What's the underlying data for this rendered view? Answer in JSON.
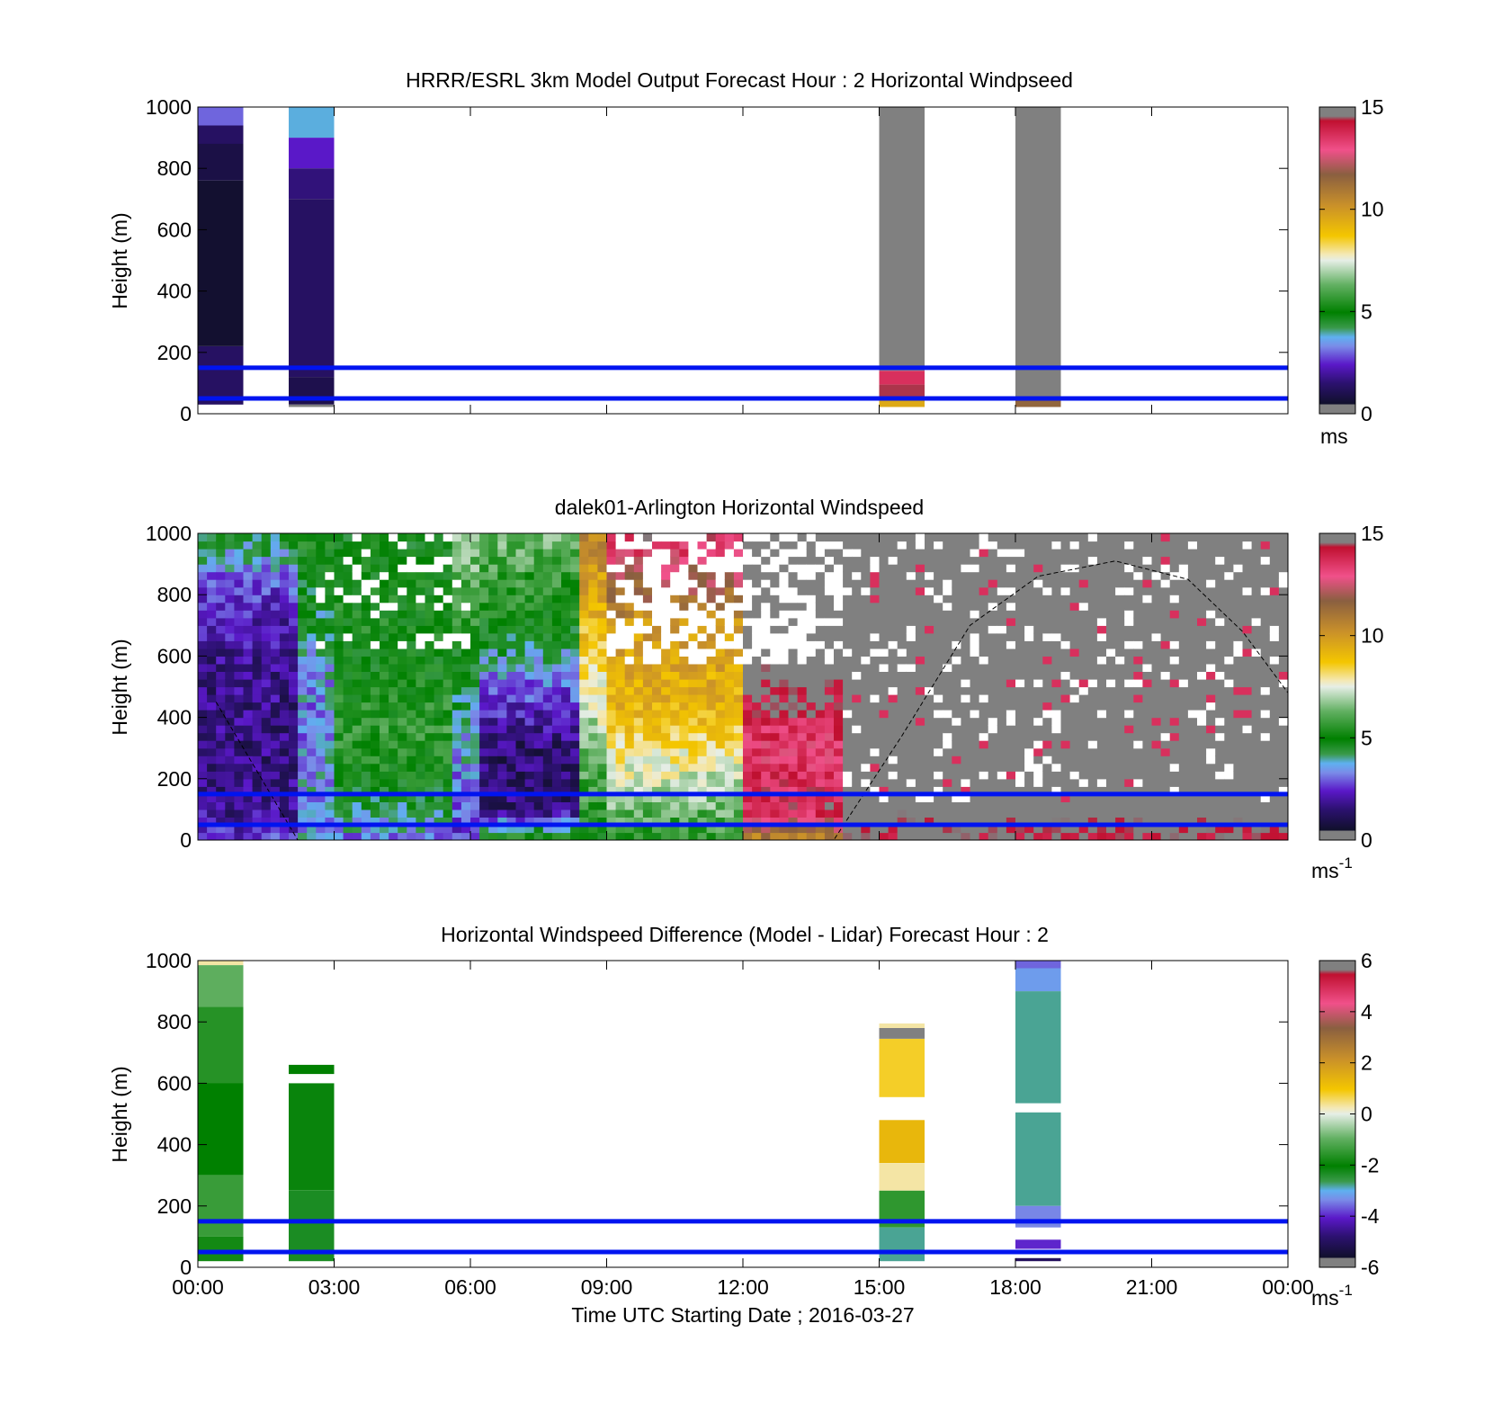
{
  "chart_data": [
    {
      "type": "heatmap",
      "title": "HRRR/ESRL 3km Model Output   Forecast Hour : 2 Horizontal Windpseed",
      "ylabel": "Height (m)",
      "ylim": [
        0,
        1000
      ],
      "yticks": [
        "0",
        "200",
        "400",
        "600",
        "800",
        "1000"
      ],
      "xlim_hours": [
        0,
        24
      ],
      "colorbar": {
        "min": 0,
        "max": 15,
        "ticks": [
          "0",
          "5",
          "10",
          "15"
        ],
        "unit": "ms",
        "unit_sup": ""
      },
      "reference_lines_m": [
        50,
        150
      ],
      "columns": [
        {
          "t0": 0.0,
          "t1": 1.0,
          "cells": [
            {
              "h0": 940,
              "h1": 1000,
              "v": 3.0
            },
            {
              "h0": 880,
              "h1": 940,
              "v": 1.3
            },
            {
              "h0": 760,
              "h1": 880,
              "v": 0.9
            },
            {
              "h0": 220,
              "h1": 760,
              "v": 0.6
            },
            {
              "h0": 30,
              "h1": 220,
              "v": 1.3
            }
          ]
        },
        {
          "t0": 2.0,
          "t1": 3.0,
          "cells": [
            {
              "h0": 900,
              "h1": 1000,
              "v": 3.8
            },
            {
              "h0": 800,
              "h1": 900,
              "v": 2.4
            },
            {
              "h0": 700,
              "h1": 800,
              "v": 1.6
            },
            {
              "h0": 120,
              "h1": 700,
              "v": 1.3
            },
            {
              "h0": 30,
              "h1": 120,
              "v": 1.0
            },
            {
              "h0": 22,
              "h1": 30,
              "v": 0.5
            }
          ]
        },
        {
          "t0": 15.0,
          "t1": 16.0,
          "cells": [
            {
              "h0": 140,
              "h1": 1000,
              "v": 15.5
            },
            {
              "h0": 95,
              "h1": 140,
              "v": 13.6
            },
            {
              "h0": 45,
              "h1": 95,
              "v": 14.4
            },
            {
              "h0": 22,
              "h1": 45,
              "v": 9.5
            }
          ]
        },
        {
          "t0": 18.0,
          "t1": 19.0,
          "cells": [
            {
              "h0": 150,
              "h1": 1000,
              "v": 15.5
            },
            {
              "h0": 45,
              "h1": 150,
              "v": 14.8
            },
            {
              "h0": 22,
              "h1": 45,
              "v": 11.5
            }
          ]
        }
      ]
    },
    {
      "type": "heatmap",
      "title": "dalek01-Arlington  Horizontal Windspeed",
      "ylabel": "Height (m)",
      "ylim": [
        0,
        1000
      ],
      "yticks": [
        "0",
        "200",
        "400",
        "600",
        "800",
        "1000"
      ],
      "xlim_hours": [
        0,
        24
      ],
      "colorbar": {
        "min": 0,
        "max": 15,
        "ticks": [
          "0",
          "5",
          "10",
          "15"
        ],
        "unit": "ms",
        "unit_sup": "-1"
      },
      "reference_lines_m": [
        50,
        150
      ],
      "dashed_curve": {
        "description": "diurnal boundary",
        "points_hours_m": [
          [
            0.4,
            450
          ],
          [
            2.2,
            0
          ],
          [
            14.0,
            0
          ],
          [
            15.5,
            340
          ],
          [
            17.0,
            700
          ],
          [
            18.5,
            860
          ],
          [
            20.2,
            910
          ],
          [
            21.8,
            850
          ],
          [
            23.0,
            680
          ],
          [
            24.0,
            480
          ]
        ]
      },
      "time_segments": [
        {
          "t0": 0.0,
          "t1": 2.0,
          "profile": [
            [
              0,
              2.6
            ],
            [
              100,
              1.8
            ],
            [
              300,
              1.6
            ],
            [
              600,
              1.8
            ],
            [
              800,
              2.6
            ],
            [
              1000,
              4.6
            ]
          ]
        },
        {
          "t0": 2.0,
          "t1": 3.0,
          "profile": [
            [
              0,
              3.4
            ],
            [
              200,
              3.6
            ],
            [
              400,
              3.2
            ],
            [
              600,
              3.8
            ],
            [
              800,
              4.6
            ],
            [
              1000,
              5.2
            ]
          ]
        },
        {
          "t0": 3.0,
          "t1": 5.6,
          "profile": [
            [
              0,
              3.2
            ],
            [
              150,
              4.8
            ],
            [
              350,
              5.6
            ],
            [
              550,
              5.0
            ],
            [
              750,
              5.2
            ],
            [
              1000,
              4.8
            ]
          ]
        },
        {
          "t0": 5.6,
          "t1": 6.2,
          "profile": [
            [
              0,
              2.6
            ],
            [
              200,
              3.2
            ],
            [
              500,
              4.4
            ],
            [
              800,
              6.0
            ],
            [
              1000,
              6.8
            ]
          ]
        },
        {
          "t0": 6.2,
          "t1": 8.3,
          "profile": [
            [
              0,
              5.6
            ],
            [
              100,
              1.6
            ],
            [
              300,
              1.4
            ],
            [
              500,
              3.0
            ],
            [
              700,
              5.0
            ],
            [
              1000,
              6.4
            ]
          ]
        },
        {
          "t0": 8.3,
          "t1": 9.0,
          "profile": [
            [
              0,
              5.0
            ],
            [
              200,
              6.0
            ],
            [
              500,
              7.8
            ],
            [
              800,
              9.6
            ],
            [
              1000,
              10.6
            ]
          ]
        },
        {
          "t0": 9.0,
          "t1": 11.8,
          "profile": [
            [
              0,
              5.4
            ],
            [
              200,
              7.2
            ],
            [
              400,
              9.0
            ],
            [
              700,
              10.0
            ],
            [
              1000,
              14.0
            ]
          ]
        },
        {
          "t0": 11.8,
          "t1": 14.0,
          "profile": [
            [
              0,
              10.4
            ],
            [
              100,
              14.0
            ],
            [
              300,
              13.2
            ],
            [
              600,
              15.5
            ],
            [
              1000,
              15.5
            ]
          ]
        },
        {
          "t0": 14.0,
          "t1": 24.0,
          "profile": [
            [
              0,
              14.5
            ],
            [
              100,
              15.5
            ],
            [
              1000,
              15.5
            ]
          ]
        }
      ]
    },
    {
      "type": "heatmap",
      "title": "Horizontal Windspeed Difference (Model - Lidar) Forecast Hour : 2",
      "ylabel": "Height (m)",
      "xlabel": "Time UTC  Starting Date ; 2016-03-27",
      "ylim": [
        0,
        1000
      ],
      "yticks": [
        "0",
        "200",
        "400",
        "600",
        "800",
        "1000"
      ],
      "xticks": [
        "00:00",
        "03:00",
        "06:00",
        "09:00",
        "12:00",
        "15:00",
        "18:00",
        "21:00",
        "00:00"
      ],
      "xlim_hours": [
        0,
        24
      ],
      "colorbar": {
        "min": -6,
        "max": 6,
        "ticks": [
          "-6",
          "-4",
          "-2",
          "0",
          "2",
          "4",
          "6"
        ],
        "unit": "ms",
        "unit_sup": "-1"
      },
      "reference_lines_m": [
        50,
        150
      ],
      "columns": [
        {
          "t0": 0.0,
          "t1": 1.0,
          "cells": [
            {
              "h0": 985,
              "h1": 1000,
              "v": 0.3
            },
            {
              "h0": 850,
              "h1": 985,
              "v": -1.0
            },
            {
              "h0": 600,
              "h1": 850,
              "v": -1.6
            },
            {
              "h0": 300,
              "h1": 600,
              "v": -2.0
            },
            {
              "h0": 100,
              "h1": 300,
              "v": -1.4
            },
            {
              "h0": 20,
              "h1": 100,
              "v": -1.8
            }
          ]
        },
        {
          "t0": 2.0,
          "t1": 3.0,
          "cells": [
            {
              "h0": 630,
              "h1": 660,
              "v": -2.0
            },
            {
              "h0": 250,
              "h1": 600,
              "v": -2.1
            },
            {
              "h0": 20,
              "h1": 250,
              "v": -2.3
            }
          ]
        },
        {
          "t0": 15.0,
          "t1": 16.0,
          "cells": [
            {
              "h0": 780,
              "h1": 795,
              "v": 0.3
            },
            {
              "h0": 745,
              "h1": 780,
              "v": 6.0
            },
            {
              "h0": 555,
              "h1": 745,
              "v": 0.8
            },
            {
              "h0": 340,
              "h1": 480,
              "v": 1.3
            },
            {
              "h0": 250,
              "h1": 340,
              "v": 0.3
            },
            {
              "h0": 130,
              "h1": 250,
              "v": -1.5
            },
            {
              "h0": 20,
              "h1": 130,
              "v": -2.8
            }
          ]
        },
        {
          "t0": 18.0,
          "t1": 19.0,
          "cells": [
            {
              "h0": 975,
              "h1": 1000,
              "v": -3.6
            },
            {
              "h0": 900,
              "h1": 975,
              "v": -3.2
            },
            {
              "h0": 535,
              "h1": 900,
              "v": -2.8
            },
            {
              "h0": 200,
              "h1": 505,
              "v": -2.8
            },
            {
              "h0": 130,
              "h1": 200,
              "v": -3.4
            },
            {
              "h0": 60,
              "h1": 90,
              "v": -4.0
            },
            {
              "h0": 20,
              "h1": 30,
              "v": -5.0
            }
          ]
        }
      ]
    }
  ]
}
